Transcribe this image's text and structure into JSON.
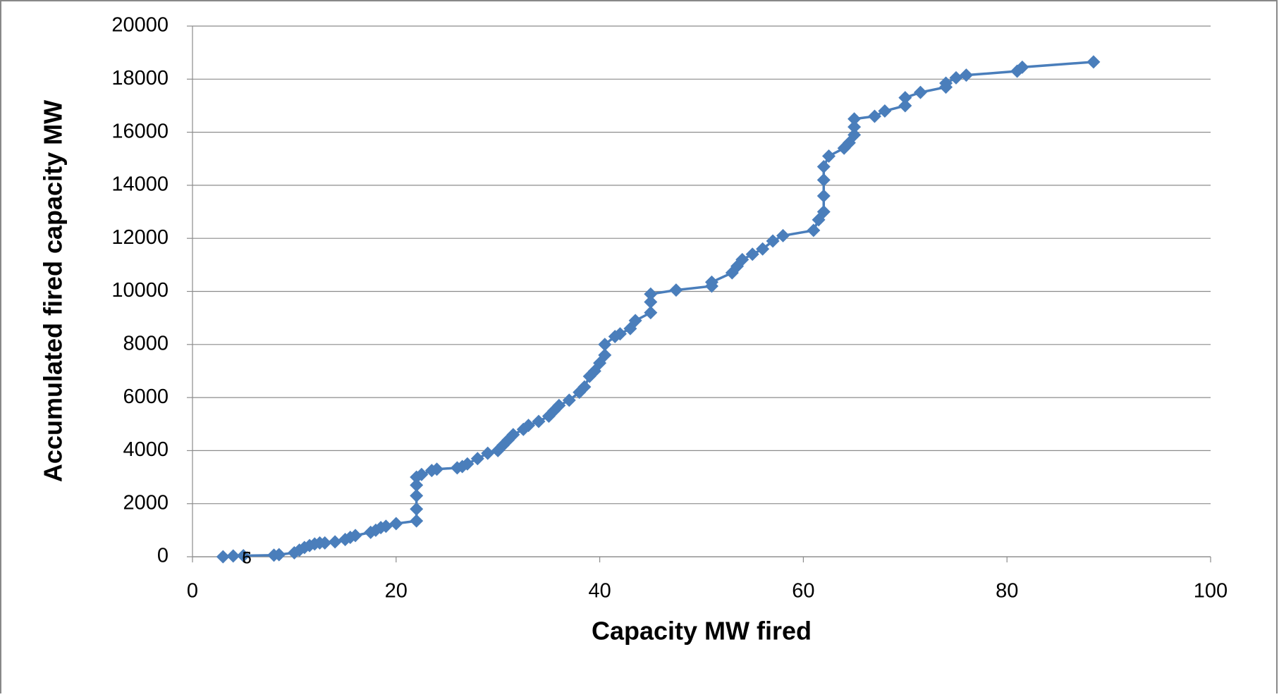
{
  "chart_data": {
    "type": "line",
    "x_label": "Capacity MW fired",
    "y_label": "Accumulated fired  capacity MW",
    "xlim": [
      0,
      100
    ],
    "xticks": [
      0,
      20,
      40,
      60,
      80,
      100
    ],
    "ylim": [
      0,
      20000
    ],
    "yticks": [
      0,
      2000,
      4000,
      6000,
      8000,
      10000,
      12000,
      14000,
      16000,
      18000,
      20000
    ],
    "grid": true,
    "color": "#4a7ebb",
    "annotations": [
      "5",
      "6"
    ],
    "x": [
      3,
      4,
      5,
      8,
      8.5,
      10,
      10.5,
      11,
      11.5,
      12,
      12.5,
      13,
      14,
      15,
      15.5,
      16,
      17.5,
      18,
      18.5,
      19,
      20,
      22,
      22,
      22,
      22,
      22,
      22.5,
      23.5,
      24,
      26,
      26.5,
      27,
      28,
      29,
      30,
      30.5,
      31,
      31.5,
      32.5,
      33,
      34,
      35,
      35.5,
      36,
      37,
      38,
      38.5,
      39,
      39.5,
      40,
      40.5,
      40.5,
      41.5,
      42,
      43,
      43.5,
      45,
      45,
      45,
      47.5,
      51,
      51,
      53,
      53.5,
      54,
      55,
      56,
      57,
      58,
      61,
      61.5,
      62,
      62,
      62,
      62,
      62.5,
      64,
      64.5,
      65,
      65,
      65,
      67,
      68,
      70,
      70,
      71.5,
      74,
      74,
      75,
      76,
      81,
      81.5,
      88.5
    ],
    "values": [
      0,
      30,
      40,
      60,
      80,
      150,
      250,
      350,
      420,
      480,
      520,
      520,
      560,
      650,
      730,
      800,
      920,
      1000,
      1100,
      1150,
      1250,
      1350,
      1800,
      2300,
      2700,
      3000,
      3100,
      3250,
      3300,
      3350,
      3400,
      3500,
      3700,
      3900,
      4000,
      4200,
      4400,
      4600,
      4800,
      4950,
      5100,
      5300,
      5500,
      5700,
      5900,
      6200,
      6400,
      6800,
      7000,
      7300,
      7600,
      8000,
      8300,
      8400,
      8600,
      8900,
      9200,
      9600,
      9900,
      10050,
      10200,
      10350,
      10700,
      10950,
      11200,
      11400,
      11600,
      11900,
      12100,
      12300,
      12700,
      13000,
      13600,
      14200,
      14700,
      15100,
      15400,
      15600,
      15900,
      16200,
      16500,
      16600,
      16800,
      17000,
      17300,
      17500,
      17700,
      17850,
      18050,
      18150,
      18300,
      18450,
      18650
    ]
  }
}
